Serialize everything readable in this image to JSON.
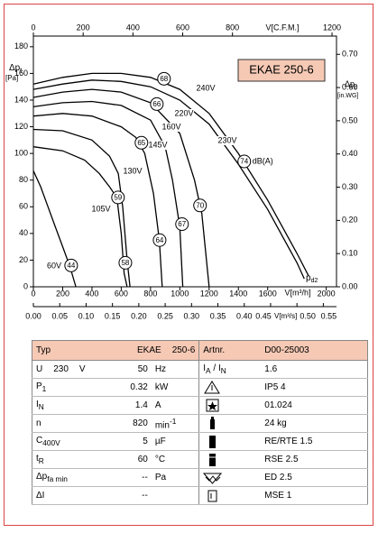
{
  "chart_data": {
    "type": "line",
    "title": "EKAE 250-6",
    "ylabel": [
      {
        "t": "Δp"
      },
      {
        "t": "t",
        "pos": "sub"
      }
    ],
    "yunit": "[Pa]",
    "y2label": [
      {
        "t": "Δp"
      },
      {
        "t": "t",
        "pos": "sub"
      }
    ],
    "y2unit": "[in.WG]",
    "xlabel": "V[m³/h]",
    "x2label": "V[C.F.M.]",
    "x3label": "V[m³/s]",
    "xlim": [
      0,
      2070
    ],
    "xticks": [
      0,
      200,
      400,
      600,
      800,
      1000,
      1200,
      1400,
      1600,
      2000
    ],
    "x2lim": [
      0,
      1218
    ],
    "x2ticks": [
      0,
      200,
      400,
      600,
      800,
      1200
    ],
    "x3lim": [
      0,
      0.575
    ],
    "x3ticks": [
      {
        "value": 0,
        "label": "0.00"
      },
      {
        "value": 0.05,
        "label": "0.05"
      },
      {
        "value": 0.1,
        "label": "0.10"
      },
      {
        "value": 0.15,
        "label": "0.15"
      },
      {
        "value": 0.2,
        "label": "0.20"
      },
      {
        "value": 0.25,
        "label": "0.25"
      },
      {
        "value": 0.3,
        "label": "0.30"
      },
      {
        "value": 0.35,
        "label": "0.35"
      },
      {
        "value": 0.4,
        "label": "0.40"
      },
      {
        "value": 0.45,
        "label": "0.45"
      },
      {
        "value": 0.5,
        "label": "0.50"
      },
      {
        "value": 0.55,
        "label": "0.55"
      }
    ],
    "ylim": [
      0,
      188
    ],
    "yticks": [
      0,
      20,
      40,
      60,
      80,
      100,
      120,
      140,
      160,
      180
    ],
    "y2lim": [
      0,
      0.755
    ],
    "y2ticks": [
      {
        "value": 0,
        "label": "0.00"
      },
      {
        "value": 0.1,
        "label": "0.10"
      },
      {
        "value": 0.2,
        "label": "0.20"
      },
      {
        "value": 0.3,
        "label": "0.30"
      },
      {
        "value": 0.4,
        "label": "0.40"
      },
      {
        "value": 0.5,
        "label": "0.50"
      },
      {
        "value": 0.6,
        "label": "0.60"
      },
      {
        "value": 0.7,
        "label": "0.70"
      }
    ],
    "series": [
      {
        "name": "240V",
        "color": "#000000",
        "x": [
          0,
          200,
          400,
          600,
          800,
          1000,
          1200,
          1400,
          1600,
          1800,
          1880
        ],
        "values": [
          152,
          157,
          160,
          160,
          157,
          148,
          130,
          100,
          65,
          25,
          8
        ]
      },
      {
        "name": "230V",
        "color": "#000000",
        "x": [
          0,
          200,
          400,
          600,
          800,
          1000,
          1200,
          1400,
          1600,
          1800,
          1850
        ],
        "values": [
          148,
          152,
          155,
          154,
          150,
          140,
          122,
          92,
          58,
          18,
          6
        ]
      },
      {
        "name": "220V",
        "color": "#000000",
        "x": [
          0,
          200,
          400,
          600,
          800,
          1000,
          1100,
          1150,
          1200
        ],
        "values": [
          142,
          146,
          148,
          146,
          138,
          115,
          80,
          55,
          0
        ]
      },
      {
        "name": "160V",
        "color": "#000000",
        "x": [
          0,
          200,
          400,
          600,
          800,
          900,
          950,
          1000,
          1020
        ],
        "values": [
          135,
          138,
          139,
          136,
          125,
          105,
          80,
          45,
          0
        ]
      },
      {
        "name": "145V",
        "color": "#000000",
        "x": [
          0,
          200,
          400,
          600,
          700,
          760,
          820,
          860,
          880
        ],
        "values": [
          128,
          130,
          128,
          120,
          112,
          100,
          70,
          35,
          0
        ]
      },
      {
        "name": "130V",
        "color": "#000000",
        "x": [
          0,
          200,
          400,
          520,
          580,
          610,
          640,
          660
        ],
        "values": [
          118,
          117,
          110,
          98,
          85,
          60,
          20,
          0
        ]
      },
      {
        "name": "105V",
        "color": "#000000",
        "x": [
          0,
          200,
          350,
          450,
          520,
          570,
          600,
          620,
          640
        ],
        "values": [
          105,
          102,
          95,
          85,
          75,
          67,
          40,
          10,
          0
        ]
      },
      {
        "name": "60V",
        "color": "#000000",
        "x": [
          0,
          50,
          100,
          150,
          200,
          250,
          290
        ],
        "values": [
          87,
          75,
          60,
          45,
          30,
          15,
          0
        ]
      }
    ],
    "sound_levels": [
      {
        "label": 68,
        "x": 892,
        "y": 156
      },
      {
        "label": 66,
        "x": 843,
        "y": 137
      },
      {
        "label": 65,
        "x": 738,
        "y": 108
      },
      {
        "label": 59,
        "x": 578,
        "y": 67
      },
      {
        "label": 44,
        "x": 258,
        "y": 16
      },
      {
        "label": 58,
        "x": 628,
        "y": 18
      },
      {
        "label": 64,
        "x": 862,
        "y": 35
      },
      {
        "label": 67,
        "x": 1015,
        "y": 47
      },
      {
        "label": 70,
        "x": 1138,
        "y": 61
      },
      {
        "label": 74,
        "x": 1440,
        "y": 94
      }
    ],
    "sound_unit": "dB(A)",
    "outlet_label": [
      {
        "t": "p"
      },
      {
        "t": "d2",
        "pos": "sub"
      }
    ]
  },
  "table": {
    "header": [
      "Typ",
      "EKAE",
      "250-6",
      "Artnr.",
      "D00-25003"
    ],
    "rows": [
      [
        [
          {
            "t": "U"
          },
          {
            "t": "230",
            "pos": "gap"
          },
          {
            "t": "V",
            "pos": "gap"
          }
        ],
        50,
        "Hz",
        [
          {
            "t": "I"
          },
          {
            "t": "A",
            "pos": "sub"
          },
          {
            "t": " / "
          },
          {
            "t": "I"
          },
          {
            "t": "N",
            "pos": "sub"
          }
        ],
        1.6
      ],
      [
        [
          {
            "t": "P"
          },
          {
            "t": "1",
            "pos": "sub"
          }
        ],
        0.32,
        "kW",
        null,
        "IP5 4"
      ],
      [
        [
          {
            "t": "I"
          },
          {
            "t": "N",
            "pos": "sub"
          }
        ],
        1.4,
        "A",
        null,
        "01.024"
      ],
      [
        [
          {
            "t": "n"
          }
        ],
        820,
        [
          {
            "t": "min"
          },
          {
            "t": "-1",
            "pos": "sup"
          }
        ],
        null,
        "24 kg"
      ],
      [
        [
          {
            "t": "C"
          },
          {
            "t": "400V",
            "pos": "sub"
          }
        ],
        5,
        "µF",
        null,
        "RE/RTE 1.5"
      ],
      [
        [
          {
            "t": "t"
          },
          {
            "t": "R",
            "pos": "sub"
          }
        ],
        60,
        "°C",
        null,
        "RSE 2.5"
      ],
      [
        [
          {
            "t": "Δp"
          },
          {
            "t": "fa min",
            "pos": "sub"
          }
        ],
        "--",
        "Pa",
        null,
        "ED 2.5"
      ],
      [
        [
          {
            "t": "ΔI"
          }
        ],
        "--",
        null,
        null,
        "MSE 1"
      ]
    ]
  }
}
